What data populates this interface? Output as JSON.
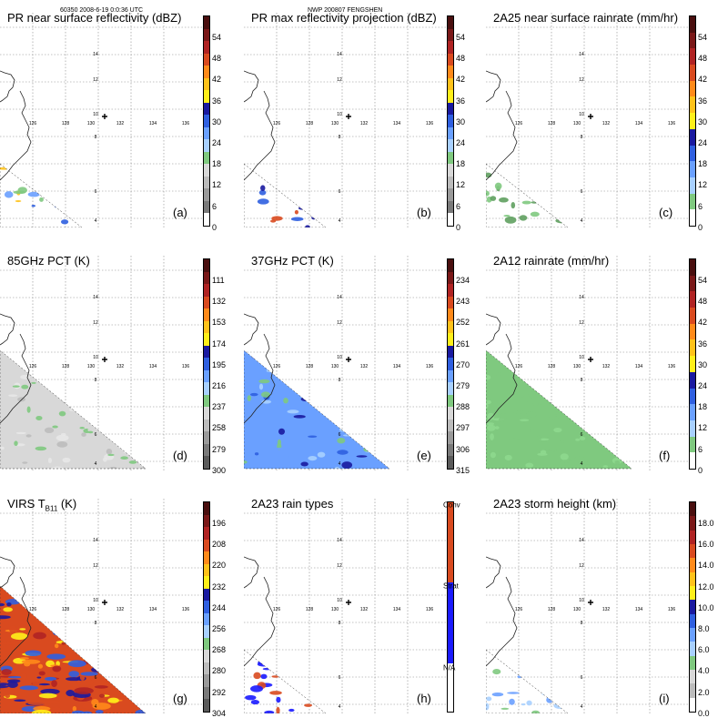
{
  "header": {
    "orbit_time": "60350 2008-6-19 0:0:36 UTC",
    "case": "NWP 200807 FENGSHEN"
  },
  "map": {
    "lon_labels": [
      "126",
      "128",
      "130",
      "132",
      "134",
      "136"
    ],
    "lat_labels": [
      "14",
      "12",
      "10",
      "8",
      "6",
      "4"
    ]
  },
  "panels": [
    {
      "title": "PR near surface reflectivity (dBZ)",
      "label": "(a)",
      "colorbar": [
        "#4a0f0f",
        "#7a1818",
        "#b02323",
        "#d94a1f",
        "#ff8a1a",
        "#ffc21a",
        "#ffef1a",
        "#1a1aa0",
        "#2f5fe0",
        "#6aa0ff",
        "#a8d0ff",
        "#7fc97f",
        "#d8d8d8",
        "#bcbcbc",
        "#9a9a9a",
        "#7a7a7a",
        "#ffffff"
      ],
      "ticks": [
        "54",
        "48",
        "42",
        "36",
        "30",
        "24",
        "18",
        "12",
        "6",
        "0"
      ],
      "data_colors": [
        "#2f5fe0",
        "#6aa0ff",
        "#7fc97f",
        "#ffc21a"
      ],
      "shape": "small"
    },
    {
      "title": "PR max reflectivity projection (dBZ)",
      "label": "(b)",
      "colorbar": [
        "#4a0f0f",
        "#7a1818",
        "#b02323",
        "#d94a1f",
        "#ff8a1a",
        "#ffc21a",
        "#ffef1a",
        "#1a1aa0",
        "#2f5fe0",
        "#6aa0ff",
        "#a8d0ff",
        "#7fc97f",
        "#d8d8d8",
        "#bcbcbc",
        "#9a9a9a",
        "#7a7a7a",
        "#ffffff"
      ],
      "ticks": [
        "54",
        "48",
        "42",
        "36",
        "30",
        "24",
        "18",
        "12",
        "6",
        "0"
      ],
      "data_colors": [
        "#1a1aa0",
        "#2f5fe0",
        "#ffc21a",
        "#d94a1f"
      ],
      "shape": "small"
    },
    {
      "title": "2A25 near surface rainrate (mm/hr)",
      "label": "(c)",
      "colorbar": [
        "#4a0f0f",
        "#7a1818",
        "#b02323",
        "#d94a1f",
        "#ff8a1a",
        "#ffc21a",
        "#ffef1a",
        "#1a1aa0",
        "#2f5fe0",
        "#6aa0ff",
        "#a8d0ff",
        "#7fc97f",
        "#ffffff"
      ],
      "ticks": [
        "54",
        "48",
        "42",
        "36",
        "30",
        "24",
        "18",
        "12",
        "6",
        "0"
      ],
      "data_colors": [
        "#7fc97f",
        "#7fc97f",
        "#5fa05f"
      ],
      "shape": "small"
    },
    {
      "title": "85GHz PCT (K)",
      "label": "(d)",
      "colorbar": [
        "#4a0f0f",
        "#7a1818",
        "#b02323",
        "#d94a1f",
        "#ff8a1a",
        "#ffc21a",
        "#ffef1a",
        "#1a1aa0",
        "#2f5fe0",
        "#6aa0ff",
        "#a8d0ff",
        "#7fc97f",
        "#d8d8d8",
        "#bcbcbc",
        "#9a9a9a",
        "#7a7a7a",
        "#5a5a5a"
      ],
      "ticks": [
        "111",
        "132",
        "153",
        "174",
        "195",
        "216",
        "237",
        "258",
        "279",
        "300"
      ],
      "data_colors": [
        "#d8d8d8",
        "#bcbcbc",
        "#e8e8e8",
        "#7fc97f"
      ],
      "shape": "large"
    },
    {
      "title": "37GHz PCT (K)",
      "label": "(e)",
      "colorbar": [
        "#4a0f0f",
        "#7a1818",
        "#b02323",
        "#d94a1f",
        "#ff8a1a",
        "#ffc21a",
        "#ffef1a",
        "#1a1aa0",
        "#2f5fe0",
        "#6aa0ff",
        "#a8d0ff",
        "#7fc97f",
        "#d8d8d8",
        "#bcbcbc",
        "#9a9a9a",
        "#7a7a7a",
        "#5a5a5a"
      ],
      "ticks": [
        "234",
        "243",
        "252",
        "261",
        "270",
        "279",
        "288",
        "297",
        "306",
        "315"
      ],
      "data_colors": [
        "#6aa0ff",
        "#2f5fe0",
        "#a8d0ff",
        "#7fc97f",
        "#1a1aa0"
      ],
      "shape": "large"
    },
    {
      "title": "2A12 rainrate (mm/hr)",
      "label": "(f)",
      "colorbar": [
        "#4a0f0f",
        "#7a1818",
        "#b02323",
        "#d94a1f",
        "#ff8a1a",
        "#ffc21a",
        "#ffef1a",
        "#1a1aa0",
        "#2f5fe0",
        "#6aa0ff",
        "#a8d0ff",
        "#7fc97f",
        "#ffffff"
      ],
      "ticks": [
        "54",
        "48",
        "42",
        "36",
        "30",
        "24",
        "18",
        "12",
        "6",
        "0"
      ],
      "data_colors": [
        "#7fc97f",
        "#8ed88e"
      ],
      "shape": "large"
    },
    {
      "title_main": "VIRS T",
      "title_sub": "B11",
      "title_unit": " (K)",
      "label": "(g)",
      "colorbar": [
        "#4a0f0f",
        "#7a1818",
        "#b02323",
        "#d94a1f",
        "#ff8a1a",
        "#ffc21a",
        "#ffef1a",
        "#1a1aa0",
        "#2f5fe0",
        "#6aa0ff",
        "#a8d0ff",
        "#7fc97f",
        "#d8d8d8",
        "#bcbcbc",
        "#9a9a9a",
        "#7a7a7a",
        "#5a5a5a"
      ],
      "ticks": [
        "196",
        "208",
        "220",
        "232",
        "244",
        "256",
        "268",
        "280",
        "292",
        "304"
      ],
      "data_colors": [
        "#d94a1f",
        "#b02323",
        "#2f5fe0",
        "#1a1aa0",
        "#ff8a1a",
        "#ffef1a"
      ],
      "shape": "huge"
    },
    {
      "title": "2A23 rain types",
      "label": "(h)",
      "colorbar": [
        "#d94a1f",
        "#d94a1f",
        "#d94a1f",
        "#d94a1f",
        "#d94a1f",
        "#1a1aff",
        "#1a1aff",
        "#1a1aff",
        "#1a1aff",
        "#1a1aff",
        "#ffffff",
        "#ffffff",
        "#ffffff"
      ],
      "ticks_named": [
        {
          "text": "Conv",
          "pos": 0.0
        },
        {
          "text": "Strat",
          "pos": 0.385
        },
        {
          "text": "N/A",
          "pos": 0.77
        }
      ],
      "data_colors": [
        "#1a1aff",
        "#1a1aff",
        "#d94a1f"
      ],
      "shape": "small"
    },
    {
      "title": "2A23 storm height (km)",
      "label": "(i)",
      "colorbar": [
        "#4a0f0f",
        "#7a1818",
        "#b02323",
        "#d94a1f",
        "#ff8a1a",
        "#ffc21a",
        "#ffef1a",
        "#1a1aa0",
        "#2f5fe0",
        "#6aa0ff",
        "#a8d0ff",
        "#7fc97f",
        "#d8d8d8",
        "#bcbcbc",
        "#ffffff"
      ],
      "ticks": [
        "18.0",
        "16.0",
        "14.0",
        "12.0",
        "10.0",
        "8.0",
        "6.0",
        "4.0",
        "2.0",
        "0.0"
      ],
      "data_colors": [
        "#6aa0ff",
        "#a8d0ff",
        "#7fc97f"
      ],
      "shape": "small"
    }
  ]
}
